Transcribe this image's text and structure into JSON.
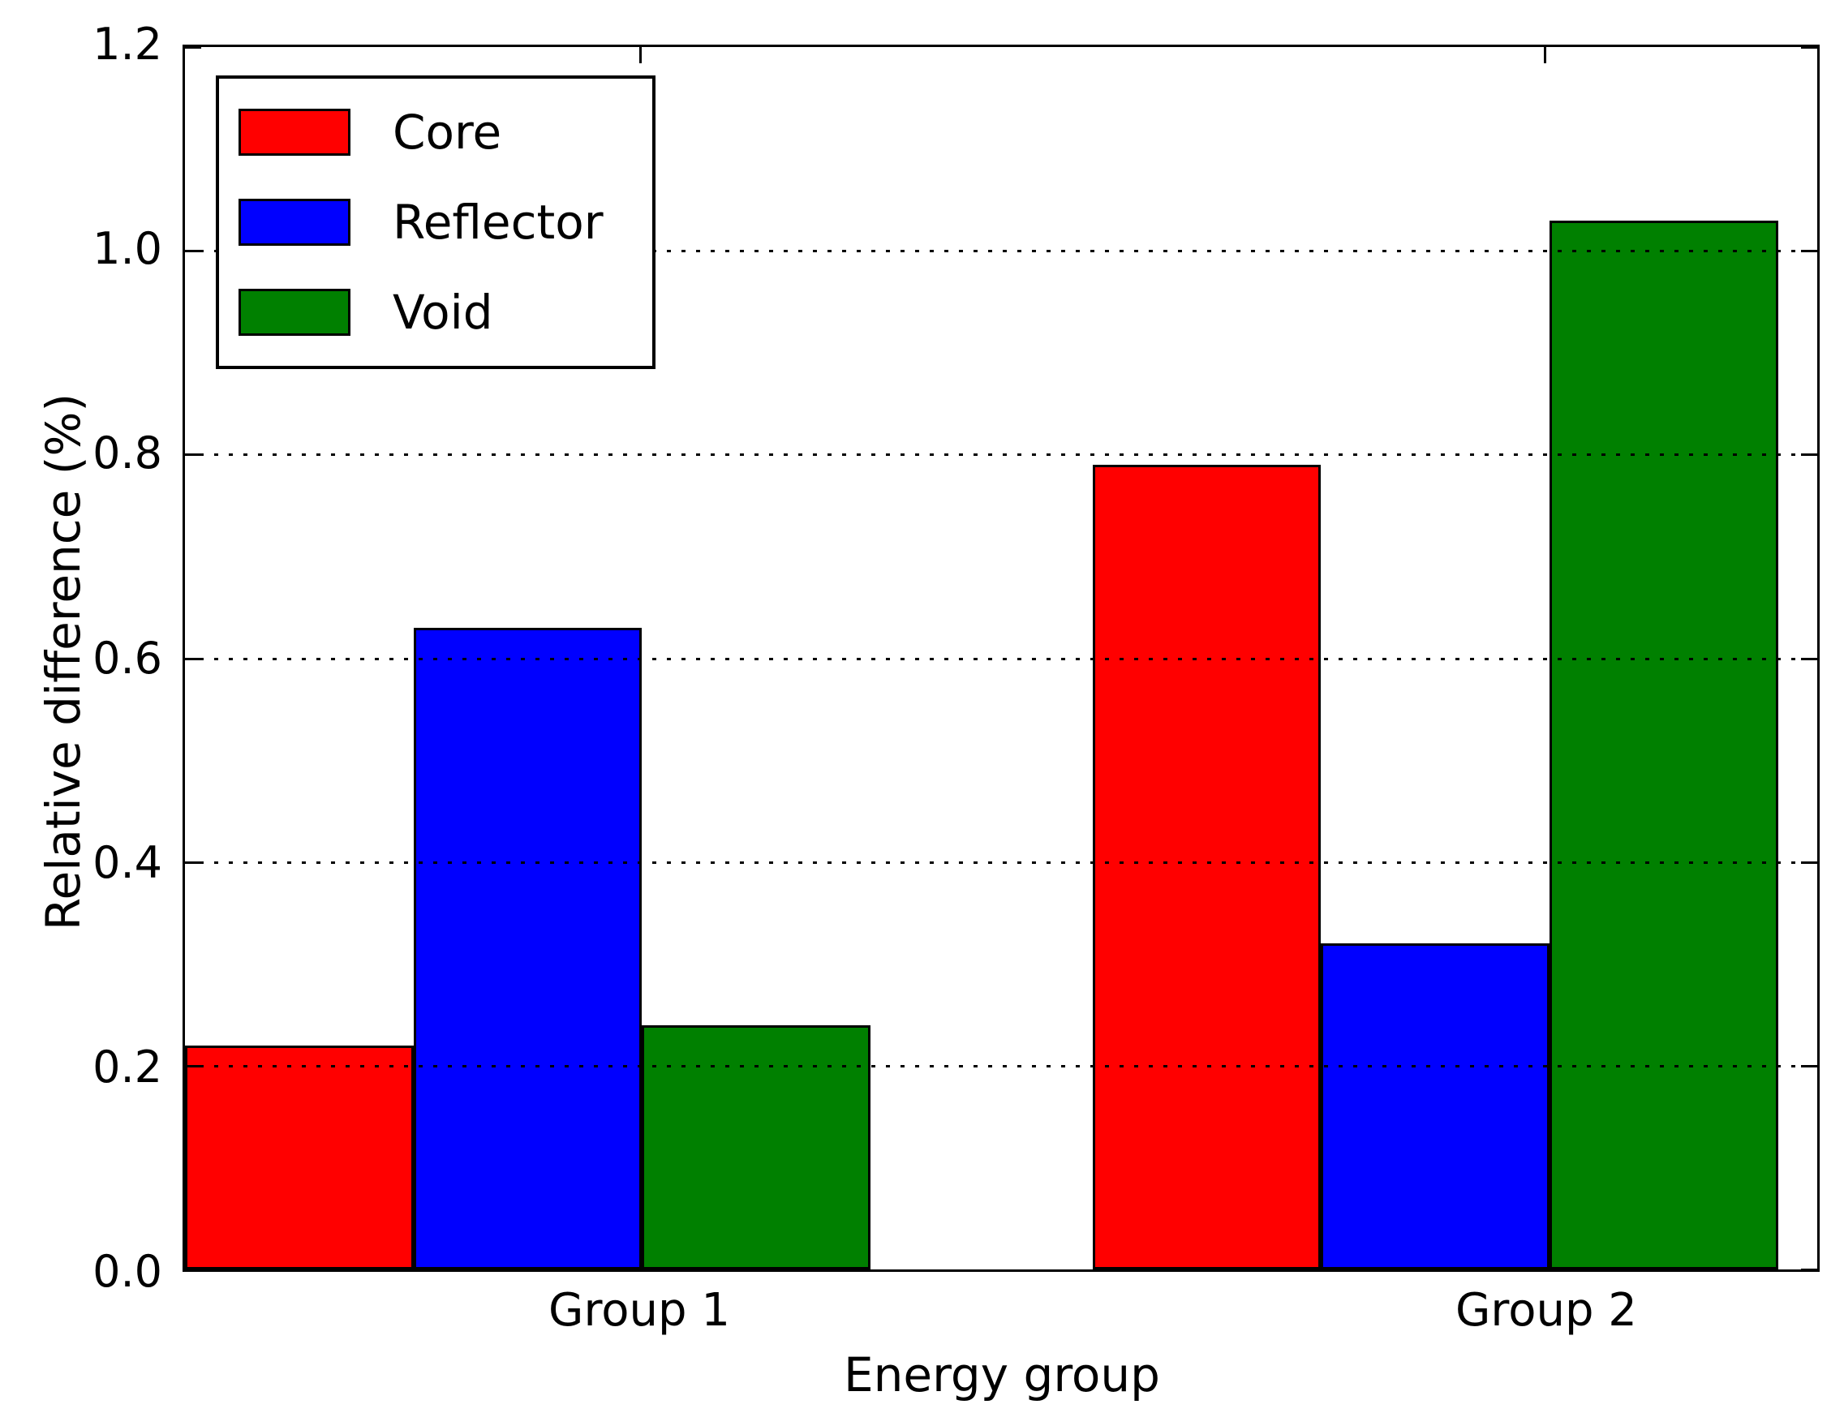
{
  "chart_data": {
    "type": "bar",
    "title": "",
    "xlabel": "Energy group",
    "ylabel": "Relative difference (%)",
    "categories": [
      "Group 1",
      "Group 2"
    ],
    "series": [
      {
        "name": "Core",
        "color": "#ff0000",
        "values": [
          0.22,
          0.79
        ]
      },
      {
        "name": "Reflector",
        "color": "#0000ff",
        "values": [
          0.63,
          0.32
        ]
      },
      {
        "name": "Void",
        "color": "#008000",
        "values": [
          0.24,
          1.03
        ]
      }
    ],
    "ylim": [
      0,
      1.2
    ],
    "yticks": [
      0.0,
      0.2,
      0.4,
      0.6,
      0.8,
      1.0,
      1.2
    ],
    "ytick_labels": [
      "0.0",
      "0.2",
      "0.4",
      "0.6",
      "0.8",
      "1.0",
      "1.2"
    ],
    "xlim": [
      0,
      2
    ],
    "bar_width_units": 0.28,
    "group_start_units": [
      0.0,
      1.112
    ],
    "category_tick_units": [
      0.558,
      1.666
    ],
    "grid": "horizontal-dotted",
    "grid_above_bars": true,
    "legend_position": "upper-left",
    "axis_color": "#000000",
    "background_color": "#ffffff"
  }
}
